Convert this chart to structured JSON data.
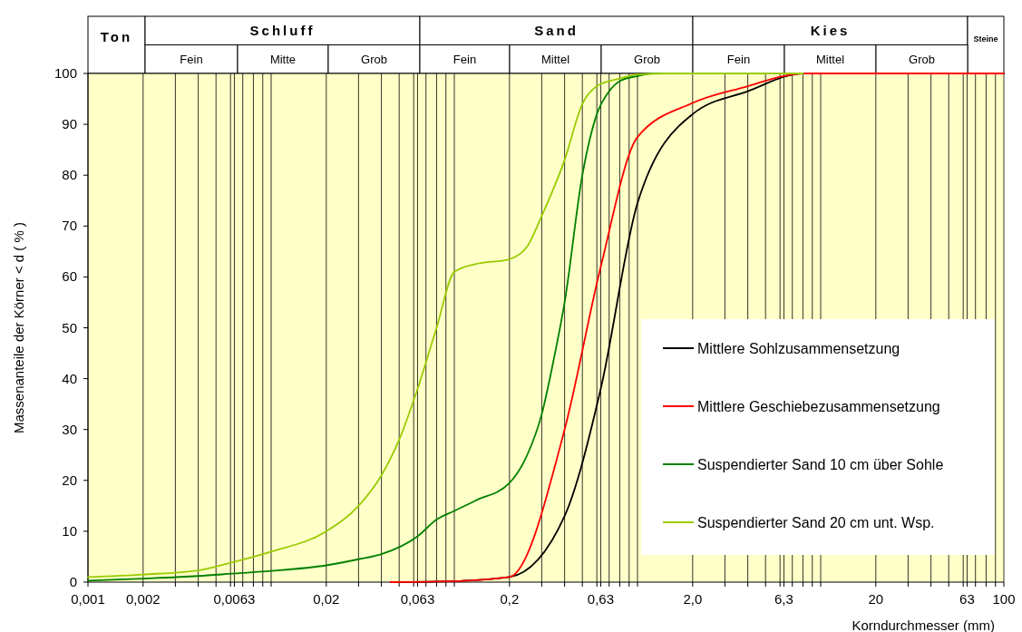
{
  "chart_data": [
    {
      "type": "other",
      "annotations": [
        "Ton",
        "Schluff",
        "Sand",
        "Kies",
        "Steine",
        "Fein",
        "Mitte",
        "Grob",
        "Fein",
        "Mittel",
        "Grob",
        "Fein",
        "Mittel",
        "Grob"
      ]
    },
    {
      "type": "line",
      "xlabel": "Korndurchmesser (mm)",
      "ylabel": "Massenanteile der Körner < d ( % )",
      "log": "x",
      "grid": "x",
      "legend": "bottom right",
      "xlim": [
        0.001,
        100
      ],
      "ylim": [
        0,
        100
      ],
      "xticks": [
        {
          "value": 0.001,
          "label": "0,001"
        },
        {
          "value": 0.002,
          "label": "0,002"
        },
        {
          "value": 0.003,
          "label": null
        },
        {
          "value": 0.004,
          "label": null
        },
        {
          "value": 0.005,
          "label": null
        },
        {
          "value": 0.006,
          "label": null
        },
        {
          "value": 0.0063,
          "label": "0,0063"
        },
        {
          "value": 0.007,
          "label": null
        },
        {
          "value": 0.008,
          "label": null
        },
        {
          "value": 0.009,
          "label": null
        },
        {
          "value": 0.01,
          "label": null
        },
        {
          "value": 0.02,
          "label": "0,02"
        },
        {
          "value": 0.03,
          "label": null
        },
        {
          "value": 0.04,
          "label": null
        },
        {
          "value": 0.05,
          "label": null
        },
        {
          "value": 0.06,
          "label": null
        },
        {
          "value": 0.063,
          "label": "0,063"
        },
        {
          "value": 0.07,
          "label": null
        },
        {
          "value": 0.08,
          "label": null
        },
        {
          "value": 0.09,
          "label": null
        },
        {
          "value": 0.1,
          "label": null
        },
        {
          "value": 0.2,
          "label": "0,2"
        },
        {
          "value": 0.3,
          "label": null
        },
        {
          "value": 0.4,
          "label": null
        },
        {
          "value": 0.5,
          "label": null
        },
        {
          "value": 0.6,
          "label": null
        },
        {
          "value": 0.63,
          "label": "0,63"
        },
        {
          "value": 0.7,
          "label": null
        },
        {
          "value": 0.8,
          "label": null
        },
        {
          "value": 0.9,
          "label": null
        },
        {
          "value": 1,
          "label": null
        },
        {
          "value": 2,
          "label": "2,0"
        },
        {
          "value": 3,
          "label": null
        },
        {
          "value": 4,
          "label": null
        },
        {
          "value": 5,
          "label": null
        },
        {
          "value": 6,
          "label": null
        },
        {
          "value": 6.3,
          "label": "6,3"
        },
        {
          "value": 7,
          "label": null
        },
        {
          "value": 8,
          "label": null
        },
        {
          "value": 9,
          "label": null
        },
        {
          "value": 10,
          "label": null
        },
        {
          "value": 20,
          "label": "20"
        },
        {
          "value": 30,
          "label": null
        },
        {
          "value": 40,
          "label": null
        },
        {
          "value": 50,
          "label": null
        },
        {
          "value": 60,
          "label": null
        },
        {
          "value": 63,
          "label": "63"
        },
        {
          "value": 70,
          "label": null
        },
        {
          "value": 80,
          "label": null
        },
        {
          "value": 90,
          "label": null
        },
        {
          "value": 100,
          "label": "100"
        }
      ],
      "yticks": [
        0,
        10,
        20,
        30,
        40,
        50,
        60,
        70,
        80,
        90,
        100
      ],
      "series": [
        {
          "name": "Mittlere Sohlzusammensetzung",
          "color": "#000000",
          "x": [
            0.045,
            0.1,
            0.2,
            0.4,
            0.63,
            1,
            2,
            4,
            8,
            100
          ],
          "values": [
            0,
            0.2,
            1,
            13,
            38,
            74.5,
            92,
            96.5,
            100,
            100
          ]
        },
        {
          "name": "Mittlere Geschiebezusammensetzung",
          "color": "#ff0000",
          "x": [
            0.045,
            0.1,
            0.2,
            0.4,
            0.63,
            1,
            2,
            4,
            6.3,
            8,
            100
          ],
          "values": [
            0,
            0.2,
            1,
            30,
            62,
            87.5,
            94.2,
            97.5,
            99.5,
            100,
            100
          ]
        },
        {
          "name": "Suspendierter Sand 10 cm über Sohle",
          "color": "#008000",
          "x": [
            0.001,
            0.002,
            0.004,
            0.0063,
            0.01,
            0.02,
            0.03,
            0.04,
            0.063,
            0.08,
            0.1,
            0.13,
            0.2,
            0.25,
            0.3,
            0.35,
            0.4,
            0.5,
            0.6,
            0.7,
            0.8,
            1,
            1.2,
            8
          ],
          "values": [
            0.3,
            0.7,
            1.2,
            1.7,
            2.2,
            3.3,
            4.5,
            5.5,
            9,
            12.3,
            14,
            16,
            19.5,
            25,
            33,
            44,
            55,
            80,
            92,
            96.5,
            98.5,
            99.5,
            100,
            100
          ]
        },
        {
          "name": "Suspendierter Sand 20 cm unt. Wsp.",
          "color": "#99cc00",
          "x": [
            0.001,
            0.002,
            0.004,
            0.0063,
            0.01,
            0.02,
            0.03,
            0.04,
            0.05,
            0.063,
            0.08,
            0.1,
            0.13,
            0.2,
            0.25,
            0.3,
            0.4,
            0.5,
            0.6,
            0.8,
            1,
            1.5,
            8
          ],
          "values": [
            1,
            1.5,
            2.3,
            4,
            6,
            10,
            15,
            21,
            28,
            38,
            50,
            61,
            62.5,
            63.5,
            66,
            72,
            83,
            94,
            97.5,
            99,
            99.8,
            100,
            100
          ]
        }
      ]
    }
  ]
}
